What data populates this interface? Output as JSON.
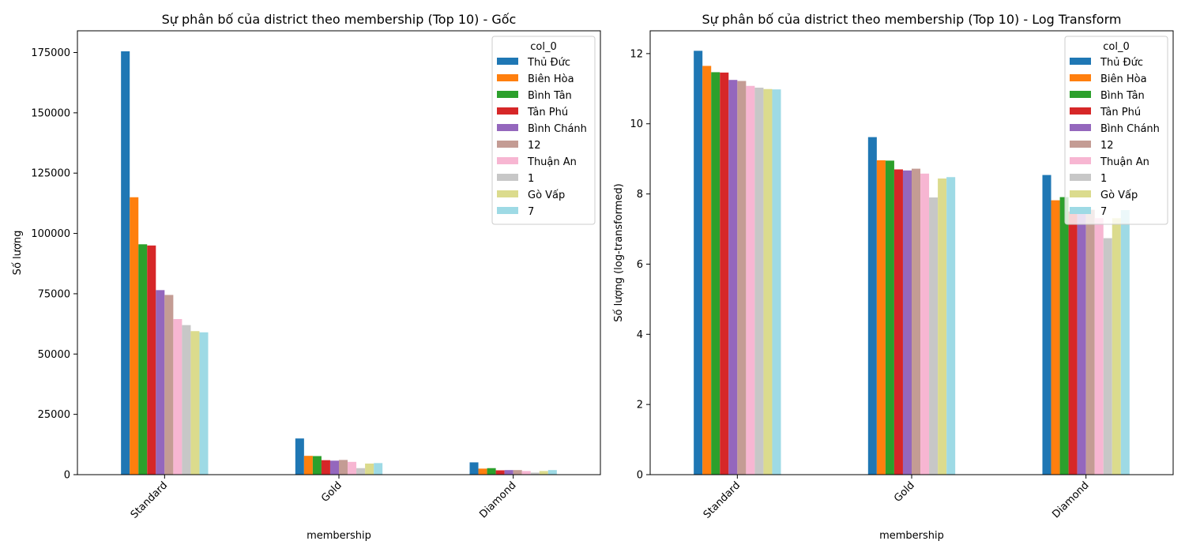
{
  "chart_data": [
    {
      "type": "bar",
      "title": "Sự phân bố của district theo membership (Top 10) - Gốc",
      "xlabel": "membership",
      "ylabel": "Số lượng",
      "categories": [
        "Standard",
        "Gold",
        "Diamond"
      ],
      "ylim": [
        0,
        184000
      ],
      "yticks": [
        0,
        25000,
        50000,
        75000,
        100000,
        125000,
        150000,
        175000
      ],
      "ytick_labels": [
        "0",
        "25000",
        "50000",
        "75000",
        "100000",
        "125000",
        "150000",
        "175000"
      ],
      "legend": {
        "title": "col_0",
        "position": "top-right"
      },
      "series": [
        {
          "name": "Thủ Đức",
          "color": "#1f77b4",
          "values": [
            175500,
            15000,
            5100
          ]
        },
        {
          "name": "Biên Hòa",
          "color": "#ff7f0e",
          "values": [
            115000,
            7800,
            2500
          ]
        },
        {
          "name": "Bình Tân",
          "color": "#2ca02c",
          "values": [
            95500,
            7700,
            2700
          ]
        },
        {
          "name": "Tân Phú",
          "color": "#d62728",
          "values": [
            95000,
            6000,
            1800
          ]
        },
        {
          "name": "Bình Chánh",
          "color": "#9467bd",
          "values": [
            76500,
            5800,
            1900
          ]
        },
        {
          "name": "12",
          "color": "#c49c94",
          "values": [
            74500,
            6100,
            1900
          ]
        },
        {
          "name": "Thuận An",
          "color": "#f7b6d2",
          "values": [
            64500,
            5300,
            1500
          ]
        },
        {
          "name": "1",
          "color": "#c7c7c7",
          "values": [
            62000,
            2700,
            850
          ]
        },
        {
          "name": "Gò Vấp",
          "color": "#dbdb8d",
          "values": [
            59500,
            4600,
            1500
          ]
        },
        {
          "name": "7",
          "color": "#9edae5",
          "values": [
            59000,
            4800,
            1900
          ]
        }
      ]
    },
    {
      "type": "bar",
      "title": "Sự phân bố của district theo membership (Top 10) - Log Transform",
      "xlabel": "membership",
      "ylabel": "Số lượng (log-transformed)",
      "categories": [
        "Standard",
        "Gold",
        "Diamond"
      ],
      "ylim": [
        0,
        12.65
      ],
      "yticks": [
        0,
        2,
        4,
        6,
        8,
        10,
        12
      ],
      "ytick_labels": [
        "0",
        "2",
        "4",
        "6",
        "8",
        "10",
        "12"
      ],
      "legend": {
        "title": "col_0",
        "position": "top-right"
      },
      "series": [
        {
          "name": "Thủ Đức",
          "color": "#1f77b4",
          "values": [
            12.08,
            9.62,
            8.54
          ]
        },
        {
          "name": "Biên Hòa",
          "color": "#ff7f0e",
          "values": [
            11.65,
            8.96,
            7.82
          ]
        },
        {
          "name": "Bình Tân",
          "color": "#2ca02c",
          "values": [
            11.47,
            8.95,
            7.91
          ]
        },
        {
          "name": "Tân Phú",
          "color": "#d62728",
          "values": [
            11.46,
            8.7,
            7.5
          ]
        },
        {
          "name": "Bình Chánh",
          "color": "#9467bd",
          "values": [
            11.25,
            8.67,
            7.55
          ]
        },
        {
          "name": "12",
          "color": "#c49c94",
          "values": [
            11.22,
            8.72,
            7.55
          ]
        },
        {
          "name": "Thuận An",
          "color": "#f7b6d2",
          "values": [
            11.08,
            8.58,
            7.31
          ]
        },
        {
          "name": "1",
          "color": "#c7c7c7",
          "values": [
            11.03,
            7.9,
            6.74
          ]
        },
        {
          "name": "Gò Vấp",
          "color": "#dbdb8d",
          "values": [
            10.99,
            8.44,
            7.31
          ]
        },
        {
          "name": "7",
          "color": "#9edae5",
          "values": [
            10.98,
            8.48,
            7.54
          ]
        }
      ]
    }
  ]
}
